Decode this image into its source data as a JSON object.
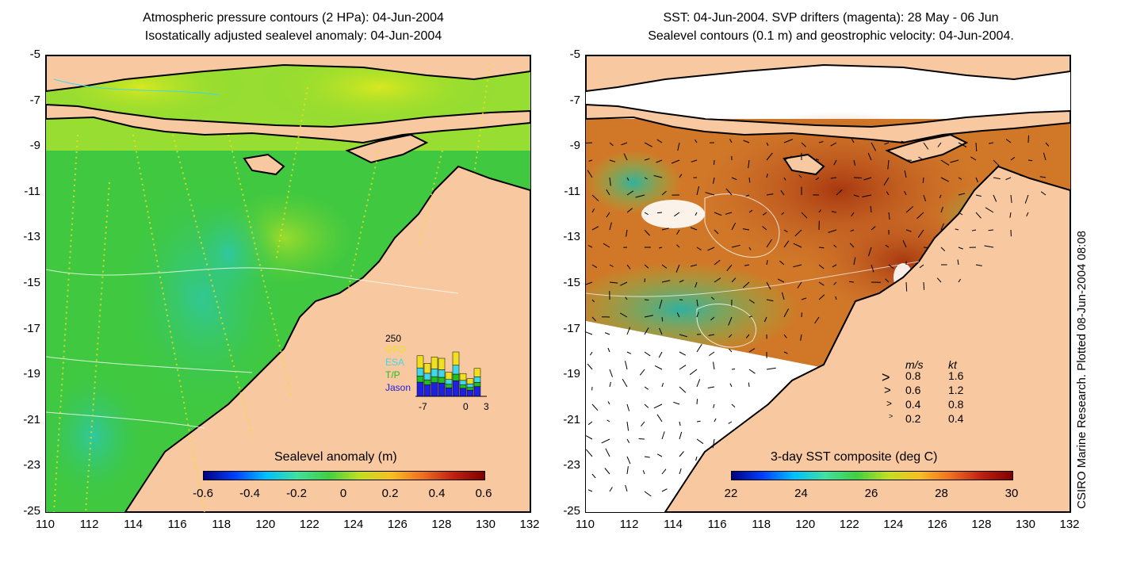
{
  "left_panel": {
    "title_line1": "Atmospheric pressure contours (2 HPa): 04-Jun-2004",
    "title_line2": "Isostatically adjusted sealevel anomaly: 04-Jun-2004",
    "colorbar_label": "Sealevel anomaly (m)",
    "colorbar_ticks": [
      "-0.6",
      "-0.4",
      "-0.2",
      "0",
      "0.2",
      "0.4",
      "0.6"
    ],
    "inset": {
      "max_label": "250",
      "legend": [
        "GFO",
        "ESA",
        "T/P",
        "Jason"
      ],
      "x_ticks": [
        "-7",
        "0",
        "3"
      ],
      "bars_total": [
        160,
        130,
        155,
        150,
        95,
        175,
        90,
        70,
        110
      ],
      "colors": {
        "GFO": "#f0e020",
        "ESA": "#40d8e8",
        "TP": "#20c020",
        "Jason": "#2020e0"
      }
    }
  },
  "right_panel": {
    "title_line1": "SST: 04-Jun-2004. SVP drifters (magenta): 28 May - 06 Jun",
    "title_line2": "Sealevel contours (0.1 m) and geostrophic velocity: 04-Jun-2004.",
    "colorbar_label": "3-day SST composite (deg C)",
    "colorbar_ticks": [
      "22",
      "24",
      "26",
      "28",
      "30"
    ],
    "velocity_legend": {
      "header_ms": "m/s",
      "header_kt": "kt",
      "rows": [
        {
          "ms": "0.8",
          "kt": "1.6"
        },
        {
          "ms": "0.6",
          "kt": "1.2"
        },
        {
          "ms": "0.4",
          "kt": "0.8"
        },
        {
          "ms": "0.2",
          "kt": "0.4"
        }
      ]
    }
  },
  "axes": {
    "y_ticks": [
      "-5",
      "-7",
      "-9",
      "-11",
      "-13",
      "-15",
      "-17",
      "-19",
      "-21",
      "-23",
      "-25"
    ],
    "x_ticks": [
      "110",
      "112",
      "114",
      "116",
      "118",
      "120",
      "122",
      "124",
      "126",
      "128",
      "130",
      "132"
    ]
  },
  "credit": "CSIRO Marine Research. Plotted 08-Jun-2004 08:08",
  "colors": {
    "land": "#f8c8a0",
    "ocean_left": "#3cc83c",
    "ocean_right": "#c86428"
  }
}
